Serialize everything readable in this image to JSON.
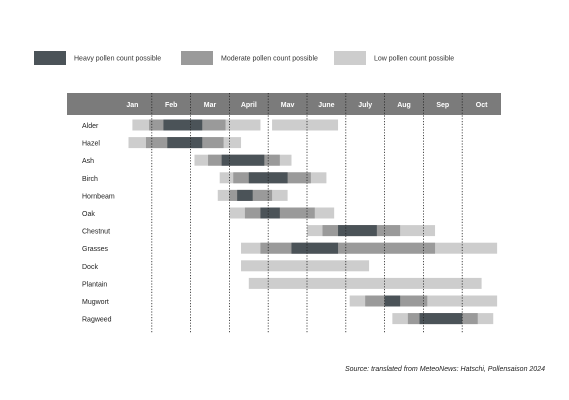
{
  "colors": {
    "heavy": "#4b5358",
    "moderate": "#9a9a9a",
    "low": "#cdcdcd",
    "header_bar": "#7b7b7b"
  },
  "chart_data": {
    "type": "gantt",
    "legend": [
      {
        "level": "heavy",
        "label": "Heavy pollen count possible"
      },
      {
        "level": "moderate",
        "label": "Moderate pollen count possible"
      },
      {
        "level": "low",
        "label": "Low pollen count possible"
      }
    ],
    "months": [
      "Jan",
      "Feb",
      "Mar",
      "April",
      "Mav",
      "June",
      "July",
      "Aug",
      "Sep",
      "Oct"
    ],
    "plants": [
      {
        "name": "Alder",
        "segments": [
          {
            "level": "low",
            "start": 0.5,
            "end": 3.8
          },
          {
            "level": "moderate",
            "start": 0.93,
            "end": 2.9
          },
          {
            "level": "heavy",
            "start": 1.3,
            "end": 2.3
          },
          {
            "level": "low",
            "start": 4.1,
            "end": 5.8
          }
        ]
      },
      {
        "name": "Hazel",
        "segments": [
          {
            "level": "low",
            "start": 0.4,
            "end": 3.3
          },
          {
            "level": "moderate",
            "start": 0.85,
            "end": 2.85
          },
          {
            "level": "heavy",
            "start": 1.4,
            "end": 2.3
          }
        ]
      },
      {
        "name": "Ash",
        "segments": [
          {
            "level": "low",
            "start": 2.1,
            "end": 4.6
          },
          {
            "level": "moderate",
            "start": 2.45,
            "end": 4.3
          },
          {
            "level": "heavy",
            "start": 2.8,
            "end": 3.9
          }
        ]
      },
      {
        "name": "Birch",
        "segments": [
          {
            "level": "low",
            "start": 2.75,
            "end": 5.5
          },
          {
            "level": "moderate",
            "start": 3.1,
            "end": 5.1
          },
          {
            "level": "heavy",
            "start": 3.5,
            "end": 4.5
          }
        ]
      },
      {
        "name": "Hornbeam",
        "segments": [
          {
            "level": "low",
            "start": 2.7,
            "end": 4.5
          },
          {
            "level": "moderate",
            "start": 3.0,
            "end": 4.1
          },
          {
            "level": "heavy",
            "start": 3.2,
            "end": 3.6
          }
        ]
      },
      {
        "name": "Oak",
        "segments": [
          {
            "level": "low",
            "start": 3.0,
            "end": 5.7
          },
          {
            "level": "moderate",
            "start": 3.4,
            "end": 5.2
          },
          {
            "level": "heavy",
            "start": 3.8,
            "end": 4.3
          }
        ]
      },
      {
        "name": "Chestnut",
        "segments": [
          {
            "level": "low",
            "start": 5.0,
            "end": 8.3
          },
          {
            "level": "moderate",
            "start": 5.4,
            "end": 7.4
          },
          {
            "level": "heavy",
            "start": 5.8,
            "end": 6.8
          }
        ]
      },
      {
        "name": "Grasses",
        "segments": [
          {
            "level": "low",
            "start": 3.3,
            "end": 9.9
          },
          {
            "level": "moderate",
            "start": 3.8,
            "end": 8.3
          },
          {
            "level": "heavy",
            "start": 4.6,
            "end": 5.8
          }
        ]
      },
      {
        "name": "Dock",
        "segments": [
          {
            "level": "low",
            "start": 3.3,
            "end": 6.6
          }
        ]
      },
      {
        "name": "Plantain",
        "segments": [
          {
            "level": "low",
            "start": 3.5,
            "end": 9.5
          }
        ]
      },
      {
        "name": "Mugwort",
        "segments": [
          {
            "level": "low",
            "start": 6.1,
            "end": 9.9
          },
          {
            "level": "moderate",
            "start": 6.5,
            "end": 8.1
          },
          {
            "level": "heavy",
            "start": 7.0,
            "end": 7.4
          }
        ]
      },
      {
        "name": "Ragweed",
        "segments": [
          {
            "level": "low",
            "start": 7.2,
            "end": 9.8
          },
          {
            "level": "moderate",
            "start": 7.6,
            "end": 9.4
          },
          {
            "level": "heavy",
            "start": 7.9,
            "end": 9.0
          }
        ]
      }
    ]
  },
  "source": "Source: translated from MeteoNews: Hatschi, Pollensaison 2024"
}
